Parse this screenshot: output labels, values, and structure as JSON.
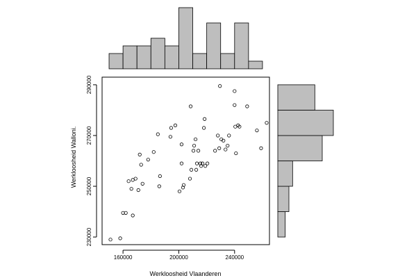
{
  "chart_data": {
    "type": "scatter",
    "title": "",
    "xlabel": "Werkloosheid Vlaanderen",
    "ylabel": "Werkloosheid Walloni.",
    "xlim": [
      145000,
      265000
    ],
    "ylim": [
      227000,
      293000
    ],
    "xticks": [
      160000,
      200000,
      240000
    ],
    "yticks": [
      230000,
      250000,
      270000,
      290000
    ],
    "points": [
      {
        "x": 151000,
        "y": 229000
      },
      {
        "x": 158000,
        "y": 229500
      },
      {
        "x": 160000,
        "y": 239500
      },
      {
        "x": 162000,
        "y": 239500
      },
      {
        "x": 167000,
        "y": 238500
      },
      {
        "x": 164000,
        "y": 252000
      },
      {
        "x": 166000,
        "y": 249000
      },
      {
        "x": 167000,
        "y": 252500
      },
      {
        "x": 169000,
        "y": 253000
      },
      {
        "x": 171000,
        "y": 248500
      },
      {
        "x": 172000,
        "y": 262500
      },
      {
        "x": 173000,
        "y": 258500
      },
      {
        "x": 174000,
        "y": 251000
      },
      {
        "x": 178000,
        "y": 260500
      },
      {
        "x": 182000,
        "y": 263500
      },
      {
        "x": 185000,
        "y": 270500
      },
      {
        "x": 186000,
        "y": 250000
      },
      {
        "x": 186500,
        "y": 254000
      },
      {
        "x": 194000,
        "y": 269500
      },
      {
        "x": 194500,
        "y": 273000
      },
      {
        "x": 197500,
        "y": 274000
      },
      {
        "x": 200500,
        "y": 248000
      },
      {
        "x": 202000,
        "y": 259000
      },
      {
        "x": 202000,
        "y": 266500
      },
      {
        "x": 203000,
        "y": 249500
      },
      {
        "x": 203500,
        "y": 250500
      },
      {
        "x": 208000,
        "y": 253000
      },
      {
        "x": 208500,
        "y": 281500
      },
      {
        "x": 209000,
        "y": 256500
      },
      {
        "x": 210500,
        "y": 264000
      },
      {
        "x": 211000,
        "y": 266000
      },
      {
        "x": 212000,
        "y": 268500
      },
      {
        "x": 212500,
        "y": 256500
      },
      {
        "x": 213000,
        "y": 259000
      },
      {
        "x": 214000,
        "y": 264000
      },
      {
        "x": 215500,
        "y": 259000
      },
      {
        "x": 216000,
        "y": 258000
      },
      {
        "x": 217000,
        "y": 259000
      },
      {
        "x": 218000,
        "y": 273000
      },
      {
        "x": 218500,
        "y": 276500
      },
      {
        "x": 219000,
        "y": 258000
      },
      {
        "x": 220500,
        "y": 259000
      },
      {
        "x": 226000,
        "y": 264000
      },
      {
        "x": 228000,
        "y": 270000
      },
      {
        "x": 229000,
        "y": 265000
      },
      {
        "x": 229500,
        "y": 289500
      },
      {
        "x": 230500,
        "y": 268500
      },
      {
        "x": 232000,
        "y": 268000
      },
      {
        "x": 233500,
        "y": 264500
      },
      {
        "x": 235000,
        "y": 266000
      },
      {
        "x": 236000,
        "y": 270000
      },
      {
        "x": 240000,
        "y": 282000
      },
      {
        "x": 240000,
        "y": 287500
      },
      {
        "x": 240500,
        "y": 273500
      },
      {
        "x": 241000,
        "y": 263000
      },
      {
        "x": 242500,
        "y": 274000
      },
      {
        "x": 243500,
        "y": 273500
      },
      {
        "x": 249000,
        "y": 281500
      },
      {
        "x": 256000,
        "y": 272000
      },
      {
        "x": 259000,
        "y": 265000
      },
      {
        "x": 263000,
        "y": 275000
      }
    ],
    "x_histogram": {
      "breaks": [
        150000,
        160000,
        170000,
        180000,
        190000,
        200000,
        210000,
        220000,
        230000,
        240000,
        250000,
        260000
      ],
      "counts": [
        2,
        3,
        3,
        4,
        3,
        8,
        2,
        6,
        2,
        6,
        1
      ]
    },
    "y_histogram": {
      "breaks": [
        230000,
        240000,
        250000,
        260000,
        270000,
        280000,
        290000
      ],
      "counts": [
        2,
        3,
        4,
        12,
        15,
        10
      ]
    }
  }
}
